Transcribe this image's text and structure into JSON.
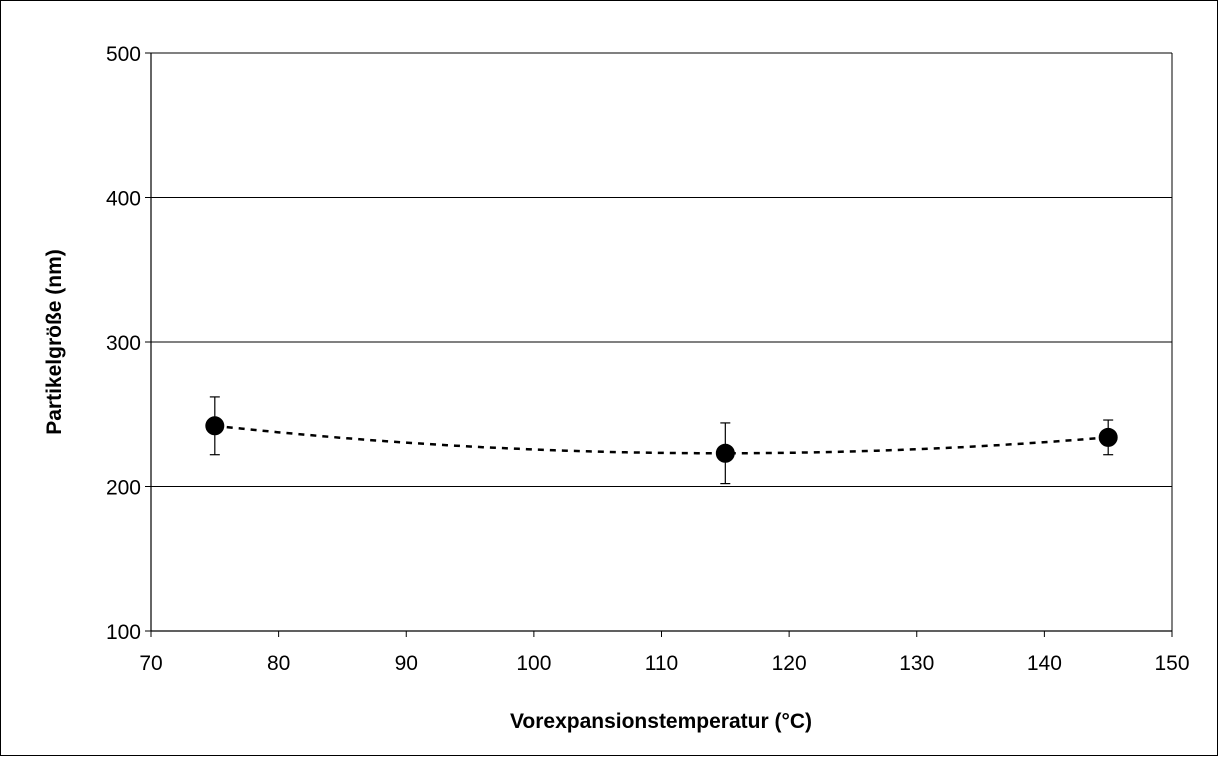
{
  "chart_data": {
    "type": "scatter",
    "title": "",
    "xlabel": "Vorexpansionstemperatur (°C)",
    "ylabel": "Partikelgröße (nm)",
    "xlim": [
      70,
      150
    ],
    "ylim": [
      100,
      500
    ],
    "xticks": [
      70,
      80,
      90,
      100,
      110,
      120,
      130,
      140,
      150
    ],
    "yticks": [
      100,
      200,
      300,
      400,
      500
    ],
    "grid": "horizontal",
    "legend": "none",
    "series": [
      {
        "marker": "circle",
        "color": "#000000",
        "x": [
          75,
          115,
          145
        ],
        "y": [
          242,
          223,
          234
        ],
        "error_low": [
          222,
          202,
          222
        ],
        "error_high": [
          262,
          244,
          246
        ],
        "trendline": {
          "style": "dotted",
          "type": "polynomial-2"
        }
      }
    ]
  }
}
